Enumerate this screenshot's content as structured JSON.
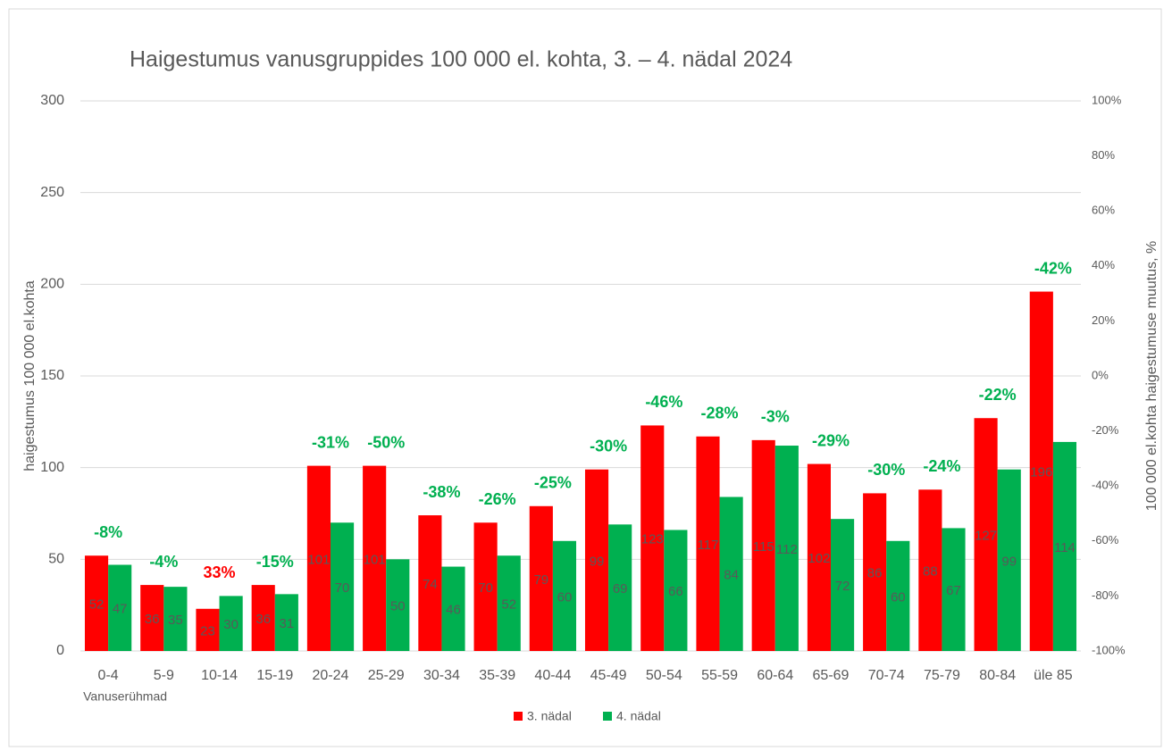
{
  "chart_data": {
    "type": "bar",
    "title": "Haigestumus vanusgruppides 100 000 el. kohta, 3. – 4. nädal 2024",
    "y_label": "haigestumus 100 000 el.kohta",
    "y2_label": "100 000 el.kohta haigestumuse muutus, %",
    "x_label": "Vanuserühmad",
    "categories": [
      "0-4",
      "5-9",
      "10-14",
      "15-19",
      "20-24",
      "25-29",
      "30-34",
      "35-39",
      "40-44",
      "45-49",
      "50-54",
      "55-59",
      "60-64",
      "65-69",
      "70-74",
      "75-79",
      "80-84",
      "üle 85"
    ],
    "series": [
      {
        "name": "3. nädal",
        "color": "#ff0000",
        "values": [
          52,
          36,
          23,
          36,
          101,
          101,
          74,
          70,
          79,
          99,
          123,
          117,
          115,
          102,
          86,
          88,
          127,
          196
        ]
      },
      {
        "name": "4. nädal",
        "color": "#00b050",
        "values": [
          47,
          35,
          30,
          31,
          70,
          50,
          46,
          52,
          60,
          69,
          66,
          84,
          112,
          72,
          60,
          67,
          99,
          114
        ]
      }
    ],
    "annotations": [
      "-8%",
      "-4%",
      "33%",
      "-15%",
      "-31%",
      "-50%",
      "-38%",
      "-26%",
      "-25%",
      "-30%",
      "-46%",
      "-28%",
      "-3%",
      "-29%",
      "-30%",
      "-24%",
      "-22%",
      "-42%"
    ],
    "annotation_colors": [
      "#00b050",
      "#00b050",
      "#ff0000",
      "#00b050",
      "#00b050",
      "#00b050",
      "#00b050",
      "#00b050",
      "#00b050",
      "#00b050",
      "#00b050",
      "#00b050",
      "#00b050",
      "#00b050",
      "#00b050",
      "#00b050",
      "#00b050",
      "#00b050"
    ],
    "ylim": [
      0,
      300
    ],
    "yticks": [
      0,
      50,
      100,
      150,
      200,
      250,
      300
    ],
    "y2lim": [
      -100,
      100
    ],
    "y2ticks": [
      {
        "value": -100,
        "label": "-100%"
      },
      {
        "value": -80,
        "label": "-80%"
      },
      {
        "value": -60,
        "label": "-60%"
      },
      {
        "value": -40,
        "label": "-40%"
      },
      {
        "value": -20,
        "label": "-20%"
      },
      {
        "value": 0,
        "label": "0%"
      },
      {
        "value": 20,
        "label": "20%"
      },
      {
        "value": 40,
        "label": "40%"
      },
      {
        "value": 60,
        "label": "60%"
      },
      {
        "value": 80,
        "label": "80%"
      },
      {
        "value": 100,
        "label": "100%"
      }
    ],
    "grid": true,
    "legend": "bottom"
  }
}
